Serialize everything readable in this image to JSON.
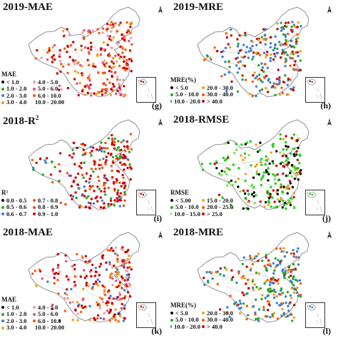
{
  "panels": [
    {
      "title": "2019-MAE",
      "superscript": "",
      "label": "(g)",
      "legend_title": "MAE",
      "legend": [
        {
          "text": "< 1.0",
          "color": "#000000"
        },
        {
          "text": "4.0 - 5.0",
          "color": "#e8a0b0"
        },
        {
          "text": "1.0 - 2.0",
          "color": "#22aa22"
        },
        {
          "text": "5.0 - 6.0",
          "color": "#e05080"
        },
        {
          "text": "2.0 - 3.0",
          "color": "#3a7fd0"
        },
        {
          "text": "6.0 - 10.0",
          "color": "#ff5500"
        },
        {
          "text": "3.0 - 4.0",
          "color": "#f2a020"
        },
        {
          "text": "10.0 - 20.00",
          "color": "#cc0000"
        }
      ],
      "palette": [
        "#cc0000",
        "#cc0000",
        "#ff5500",
        "#e05080",
        "#e8a0b0",
        "#cc0000",
        "#ff5500",
        "#f2a020"
      ]
    },
    {
      "title": "2019-MRE",
      "superscript": "",
      "label": "(h)",
      "legend_title": "MRE(%)",
      "legend": [
        {
          "text": "< 5.0",
          "color": "#000000"
        },
        {
          "text": "20.0 - 30.0",
          "color": "#f2a020"
        },
        {
          "text": "5.0 - 10.0",
          "color": "#22aa22"
        },
        {
          "text": "30.0 - 40.0",
          "color": "#ff5500"
        },
        {
          "text": "10.0 - 20.0",
          "color": "#3a7fd0"
        },
        {
          "text": "> 40.0",
          "color": "#cc0000"
        }
      ],
      "palette": [
        "#cc0000",
        "#3a7fd0",
        "#3a7fd0",
        "#ff5500",
        "#f2a020",
        "#cc0000",
        "#3a7fd0",
        "#22aa22"
      ]
    },
    {
      "title": "2018-R",
      "superscript": "2",
      "label": "(i)",
      "legend_title": "R²",
      "legend": [
        {
          "text": "0.0 - 0.5",
          "color": "#000000"
        },
        {
          "text": "0.7 - 0.8",
          "color": "#ff5500"
        },
        {
          "text": "0.5 - 0.6",
          "color": "#22aa22"
        },
        {
          "text": "0.8 - 0.9",
          "color": "#e05020"
        },
        {
          "text": "0.6 - 0.7",
          "color": "#3a7fd0"
        },
        {
          "text": "0.9 - 1.0",
          "color": "#cc0000"
        }
      ],
      "palette": [
        "#cc0000",
        "#cc0000",
        "#cc0000",
        "#e05020",
        "#ff5500",
        "#cc0000",
        "#3a7fd0",
        "#22aa22"
      ]
    },
    {
      "title": "2018-RMSE",
      "superscript": "",
      "label": "(j)",
      "legend_title": "RMSE",
      "legend": [
        {
          "text": "< 5.00",
          "color": "#000000"
        },
        {
          "text": "15.0 - 20.0",
          "color": "#f2a020"
        },
        {
          "text": "5.0 - 10.0",
          "color": "#22aa22"
        },
        {
          "text": "20.0 - 25.0",
          "color": "#ff5500"
        },
        {
          "text": "10.0 - 15.0",
          "color": "#7fdd55"
        },
        {
          "text": "> 25.0",
          "color": "#cc0000"
        }
      ],
      "palette": [
        "#22cc22",
        "#22cc22",
        "#7fdd55",
        "#000000",
        "#22cc22",
        "#000000",
        "#cc0000",
        "#f2a020"
      ]
    },
    {
      "title": "2018-MAE",
      "superscript": "",
      "label": "(k)",
      "legend_title": "MAE",
      "legend": [
        {
          "text": "< 1.0",
          "color": "#000000"
        },
        {
          "text": "4.0 - 5.0",
          "color": "#e8a0b0"
        },
        {
          "text": "1.0 - 2.0",
          "color": "#22aa22"
        },
        {
          "text": "5.0 - 6.0",
          "color": "#e05080"
        },
        {
          "text": "2.0 - 3.0",
          "color": "#3a7fd0"
        },
        {
          "text": "6.0 - 10.0",
          "color": "#ff5500"
        },
        {
          "text": "3.0 - 4.0",
          "color": "#f2a020"
        },
        {
          "text": "10.0 - 20.00",
          "color": "#cc0000"
        }
      ],
      "palette": [
        "#cc0000",
        "#ff5500",
        "#e05080",
        "#cc0000",
        "#3a7fd0",
        "#f2a020",
        "#e8a0b0",
        "#cc0000"
      ]
    },
    {
      "title": "2018-MRE",
      "superscript": "",
      "label": "(l)",
      "legend_title": "MRE(%)",
      "legend": [
        {
          "text": "< 5.0",
          "color": "#000000"
        },
        {
          "text": "20.0 - 30.0",
          "color": "#f2a020"
        },
        {
          "text": "5.0 - 10.0",
          "color": "#22aa22"
        },
        {
          "text": "30.0 - 40.0",
          "color": "#ff5500"
        },
        {
          "text": "10.0 - 20.0",
          "color": "#3a7fd0"
        },
        {
          "text": "> 40.0",
          "color": "#cc0000"
        }
      ],
      "palette": [
        "#3a7fd0",
        "#3a7fd0",
        "#22aa22",
        "#cc0000",
        "#3a7fd0",
        "#f2a020",
        "#ff5500",
        "#22aa22"
      ]
    }
  ]
}
